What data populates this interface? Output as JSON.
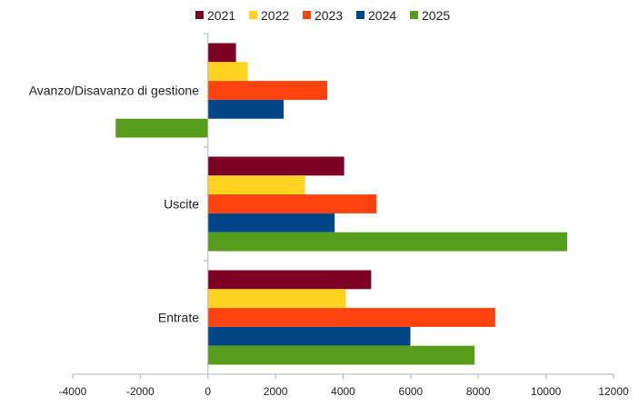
{
  "chart_data": {
    "type": "bar",
    "orientation": "horizontal",
    "title": "",
    "xlabel": "",
    "ylabel": "",
    "categories": [
      "Avanzo/Disavanzo di gestione",
      "Uscite",
      "Entrate"
    ],
    "series": [
      {
        "name": "2021",
        "color": "#7b0023",
        "values": [
          830,
          4030,
          4830
        ]
      },
      {
        "name": "2022",
        "color": "#ffd320",
        "values": [
          1180,
          2870,
          4080
        ]
      },
      {
        "name": "2023",
        "color": "#ff420e",
        "values": [
          3530,
          4990,
          8500
        ]
      },
      {
        "name": "2024",
        "color": "#004586",
        "values": [
          2240,
          3750,
          5990
        ]
      },
      {
        "name": "2025",
        "color": "#579d1c",
        "values": [
          -2730,
          10630,
          7890
        ]
      }
    ],
    "xlim": [
      -4000,
      12000
    ],
    "x_ticks": [
      "-4000",
      "-2000",
      "0",
      "2000",
      "4000",
      "6000",
      "8000",
      "10000",
      "12000"
    ],
    "grid": false,
    "legend_position": "top"
  }
}
